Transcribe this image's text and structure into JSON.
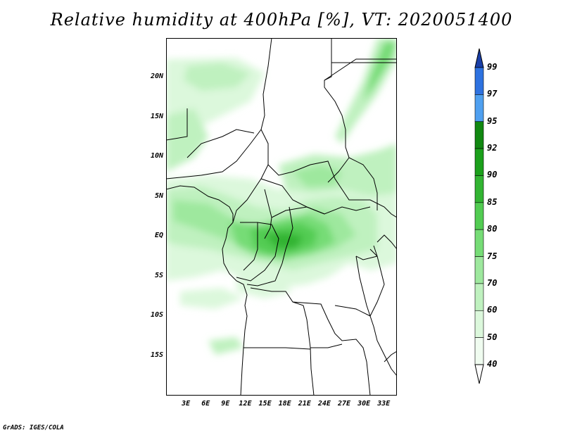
{
  "title": "Relative humidity at 400hPa [%], VT: 2020051400",
  "credit": "GrADS: IGES/COLA",
  "map": {
    "lat_range": [
      -20,
      25
    ],
    "lon_range": [
      0,
      35
    ],
    "y_ticks": [
      {
        "lat": 20,
        "label": "20N"
      },
      {
        "lat": 15,
        "label": "15N"
      },
      {
        "lat": 10,
        "label": "10N"
      },
      {
        "lat": 5,
        "label": "5N"
      },
      {
        "lat": 0,
        "label": "EQ"
      },
      {
        "lat": -5,
        "label": "5S"
      },
      {
        "lat": -10,
        "label": "10S"
      },
      {
        "lat": -15,
        "label": "15S"
      }
    ],
    "x_ticks": [
      {
        "lon": 3,
        "label": "3E"
      },
      {
        "lon": 6,
        "label": "6E"
      },
      {
        "lon": 9,
        "label": "9E"
      },
      {
        "lon": 12,
        "label": "12E"
      },
      {
        "lon": 15,
        "label": "15E"
      },
      {
        "lon": 18,
        "label": "18E"
      },
      {
        "lon": 21,
        "label": "21E"
      },
      {
        "lon": 24,
        "label": "24E"
      },
      {
        "lon": 27,
        "label": "27E"
      },
      {
        "lon": 30,
        "label": "30E"
      },
      {
        "lon": 33,
        "label": "33E"
      }
    ]
  },
  "colorbar": {
    "levels": [
      "99",
      "97",
      "95",
      "92",
      "90",
      "85",
      "80",
      "75",
      "70",
      "60",
      "50",
      "40"
    ],
    "colors": [
      "#1f4ec8",
      "#2e72e0",
      "#4fa0f0",
      "#118811",
      "#1ba01b",
      "#32b432",
      "#52cc52",
      "#76dc76",
      "#9ee89e",
      "#bff1bf",
      "#dcf8dc",
      "#f0fcf0"
    ],
    "top_color": "#1a3fa8"
  }
}
